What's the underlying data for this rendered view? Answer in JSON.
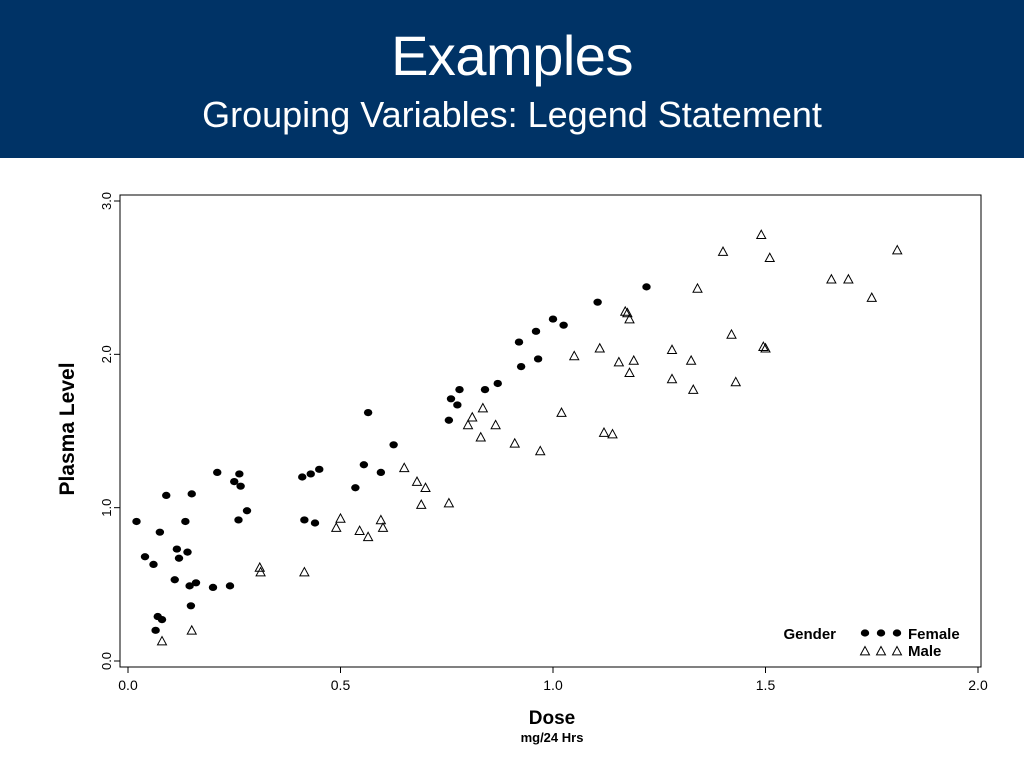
{
  "slide": {
    "title": "Examples",
    "subtitle": "Grouping Variables: Legend Statement",
    "banner_color": "#003366"
  },
  "chart_data": {
    "type": "scatter",
    "xlabel": "Dose",
    "xlabel_sub": "mg/24 Hrs",
    "ylabel": "Plasma Level",
    "xlim": [
      0.0,
      2.0
    ],
    "ylim": [
      0.0,
      3.0
    ],
    "xticks": [
      "0.0",
      "0.5",
      "1.0",
      "1.5",
      "2.0"
    ],
    "yticks": [
      "0.0",
      "1.0",
      "2.0",
      "3.0"
    ],
    "grid": false,
    "legend": {
      "title": "Gender",
      "placement": "bottom-right",
      "entries": [
        "Female",
        "Male"
      ]
    },
    "series": [
      {
        "name": "Female",
        "marker": "dot",
        "points": [
          [
            0.02,
            0.91
          ],
          [
            0.04,
            0.68
          ],
          [
            0.06,
            0.63
          ],
          [
            0.065,
            0.2
          ],
          [
            0.07,
            0.29
          ],
          [
            0.075,
            0.84
          ],
          [
            0.08,
            0.27
          ],
          [
            0.09,
            1.08
          ],
          [
            0.11,
            0.53
          ],
          [
            0.115,
            0.73
          ],
          [
            0.12,
            0.67
          ],
          [
            0.135,
            0.91
          ],
          [
            0.14,
            0.71
          ],
          [
            0.145,
            0.49
          ],
          [
            0.148,
            0.36
          ],
          [
            0.15,
            1.09
          ],
          [
            0.16,
            0.51
          ],
          [
            0.2,
            0.48
          ],
          [
            0.21,
            1.23
          ],
          [
            0.24,
            0.49
          ],
          [
            0.25,
            1.17
          ],
          [
            0.26,
            0.92
          ],
          [
            0.262,
            1.22
          ],
          [
            0.265,
            1.14
          ],
          [
            0.28,
            0.98
          ],
          [
            0.41,
            1.2
          ],
          [
            0.415,
            0.92
          ],
          [
            0.43,
            1.22
          ],
          [
            0.44,
            0.9
          ],
          [
            0.45,
            1.25
          ],
          [
            0.535,
            1.13
          ],
          [
            0.555,
            1.28
          ],
          [
            0.565,
            1.62
          ],
          [
            0.595,
            1.23
          ],
          [
            0.625,
            1.41
          ],
          [
            0.755,
            1.57
          ],
          [
            0.76,
            1.71
          ],
          [
            0.775,
            1.67
          ],
          [
            0.78,
            1.77
          ],
          [
            0.84,
            1.77
          ],
          [
            0.87,
            1.81
          ],
          [
            0.92,
            2.08
          ],
          [
            0.925,
            1.92
          ],
          [
            0.96,
            2.15
          ],
          [
            0.965,
            1.97
          ],
          [
            1.0,
            2.23
          ],
          [
            1.025,
            2.19
          ],
          [
            1.105,
            2.34
          ],
          [
            1.22,
            2.44
          ]
        ]
      },
      {
        "name": "Male",
        "marker": "triangle",
        "points": [
          [
            0.08,
            0.13
          ],
          [
            0.15,
            0.2
          ],
          [
            0.31,
            0.61
          ],
          [
            0.312,
            0.58
          ],
          [
            0.415,
            0.58
          ],
          [
            0.49,
            0.87
          ],
          [
            0.5,
            0.93
          ],
          [
            0.545,
            0.85
          ],
          [
            0.565,
            0.81
          ],
          [
            0.595,
            0.92
          ],
          [
            0.6,
            0.87
          ],
          [
            0.65,
            1.26
          ],
          [
            0.68,
            1.17
          ],
          [
            0.69,
            1.02
          ],
          [
            0.7,
            1.13
          ],
          [
            0.755,
            1.03
          ],
          [
            0.8,
            1.54
          ],
          [
            0.81,
            1.59
          ],
          [
            0.83,
            1.46
          ],
          [
            0.835,
            1.65
          ],
          [
            0.865,
            1.54
          ],
          [
            0.91,
            1.42
          ],
          [
            0.97,
            1.37
          ],
          [
            1.02,
            1.62
          ],
          [
            1.05,
            1.99
          ],
          [
            1.11,
            2.04
          ],
          [
            1.12,
            1.49
          ],
          [
            1.14,
            1.48
          ],
          [
            1.155,
            1.95
          ],
          [
            1.17,
            2.28
          ],
          [
            1.175,
            2.27
          ],
          [
            1.18,
            2.23
          ],
          [
            1.18,
            1.88
          ],
          [
            1.19,
            1.96
          ],
          [
            1.28,
            1.84
          ],
          [
            1.28,
            2.03
          ],
          [
            1.325,
            1.96
          ],
          [
            1.33,
            1.77
          ],
          [
            1.34,
            2.43
          ],
          [
            1.4,
            2.67
          ],
          [
            1.42,
            2.13
          ],
          [
            1.43,
            1.82
          ],
          [
            1.49,
            2.78
          ],
          [
            1.495,
            2.05
          ],
          [
            1.5,
            2.04
          ],
          [
            1.51,
            2.63
          ],
          [
            1.655,
            2.49
          ],
          [
            1.695,
            2.49
          ],
          [
            1.75,
            2.37
          ],
          [
            1.81,
            2.68
          ]
        ]
      }
    ]
  }
}
